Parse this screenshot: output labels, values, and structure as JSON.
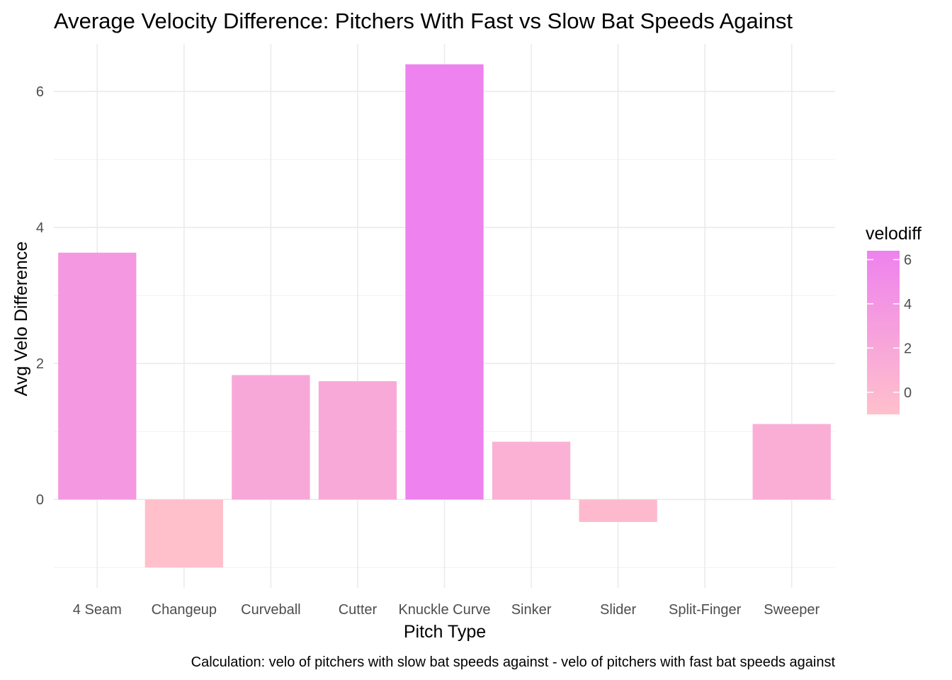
{
  "chart_data": {
    "type": "bar",
    "title": "Average Velocity Difference: Pitchers With Fast vs Slow Bat Speeds Against",
    "xlabel": "Pitch Type",
    "ylabel": "Avg Velo Difference",
    "caption": "Calculation: velo of pitchers with slow bat speeds against - velo of pitchers with fast bat speeds against",
    "categories": [
      "4 Seam",
      "Changeup",
      "Curveball",
      "Cutter",
      "Knuckle Curve",
      "Sinker",
      "Slider",
      "Split-Finger",
      "Sweeper"
    ],
    "values": [
      3.63,
      -1.0,
      1.83,
      1.74,
      6.4,
      0.85,
      -0.33,
      0.0,
      1.11
    ],
    "ylim": [
      -1.3,
      6.7
    ],
    "yticks": [
      0,
      2,
      4,
      6
    ],
    "grid": true,
    "legend": {
      "title": "velodiff",
      "position": "right",
      "ticks": [
        0,
        2,
        4,
        6
      ],
      "range": [
        -1.0,
        6.4
      ],
      "color_low": "#ffc0cb",
      "color_high": "#ee82ee"
    }
  }
}
